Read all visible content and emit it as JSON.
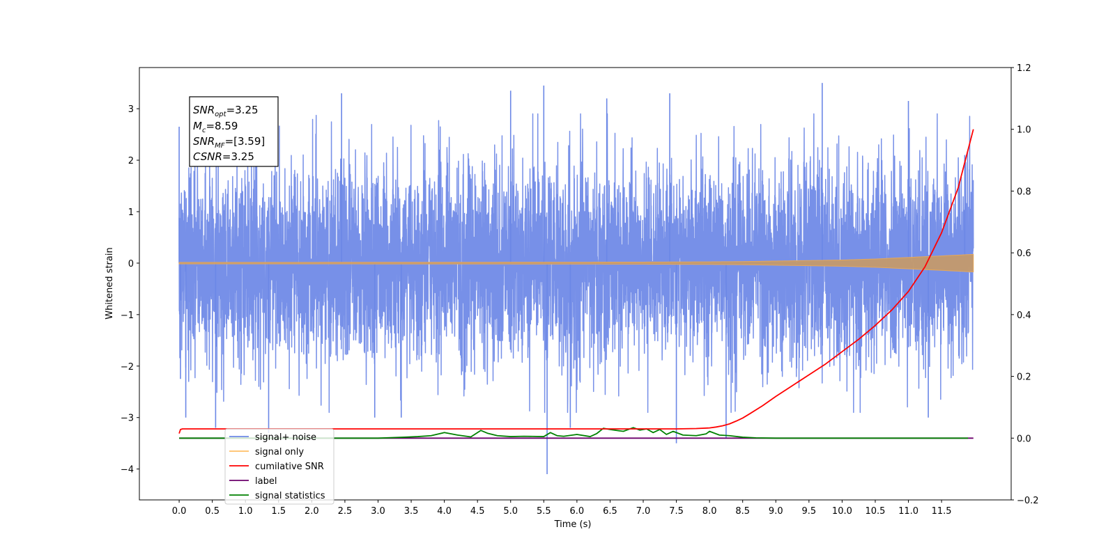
{
  "chart_data": {
    "type": "line",
    "title": "",
    "xlabel": "Time (s)",
    "ylabel": "Whitened strain",
    "y2label": "",
    "xlim": [
      -0.6,
      12.55
    ],
    "ylim": [
      -4.6,
      3.8
    ],
    "y2lim": [
      -0.2,
      1.2
    ],
    "grid": false,
    "legend_placement": "lower left",
    "x_ticks": [
      "0.0",
      "0.5",
      "1.0",
      "1.5",
      "2.0",
      "2.5",
      "3.0",
      "3.5",
      "4.0",
      "4.5",
      "5.0",
      "5.5",
      "6.0",
      "6.5",
      "7.0",
      "7.5",
      "8.0",
      "8.5",
      "9.0",
      "9.5",
      "10.0",
      "10.5",
      "11.0",
      "11.5"
    ],
    "y_ticks": [
      "−4",
      "−3",
      "−2",
      "−1",
      "0",
      "1",
      "2",
      "3"
    ],
    "y2_ticks": [
      "−0.2",
      "0.0",
      "0.2",
      "0.4",
      "0.6",
      "0.8",
      "1.0",
      "1.2"
    ],
    "annotation": {
      "snr_opt": "3.25",
      "mc": "8.59",
      "snr_mf": "[3.59]",
      "csnr": "3.25"
    },
    "series": [
      {
        "name": "signal+ noise",
        "color": "#6b87e6",
        "axis": "left",
        "style": "noisy band",
        "band_typical_envelope": [
          -1.5,
          1.5
        ],
        "band_rms": 0.95,
        "notable_extremes": [
          {
            "x": 0.0,
            "y": 2.65
          },
          {
            "x": 0.02,
            "y": -2.25
          },
          {
            "x": 0.1,
            "y": -3.0
          },
          {
            "x": 0.55,
            "y": -3.2
          },
          {
            "x": 1.35,
            "y": -3.3
          },
          {
            "x": 2.45,
            "y": 3.3
          },
          {
            "x": 2.95,
            "y": -3.0
          },
          {
            "x": 3.35,
            "y": -3.0
          },
          {
            "x": 5.0,
            "y": 3.35
          },
          {
            "x": 5.5,
            "y": 3.45
          },
          {
            "x": 5.55,
            "y": -4.1
          },
          {
            "x": 5.9,
            "y": -3.2
          },
          {
            "x": 6.45,
            "y": 3.2
          },
          {
            "x": 7.4,
            "y": 3.3
          },
          {
            "x": 7.5,
            "y": -3.5
          },
          {
            "x": 8.25,
            "y": -3.4
          },
          {
            "x": 9.7,
            "y": 3.5
          },
          {
            "x": 11.0,
            "y": 3.15
          },
          {
            "x": 11.3,
            "y": -3.0
          },
          {
            "x": 11.85,
            "y": 2.1
          }
        ]
      },
      {
        "name": "signal only",
        "color": "#f5a623",
        "axis": "left",
        "style": "chirp",
        "envelope_x": [
          0.0,
          2.0,
          4.0,
          6.0,
          7.0,
          8.0,
          8.5,
          9.0,
          9.5,
          10.0,
          10.5,
          11.0,
          11.5,
          11.98
        ],
        "envelope_amp": [
          0.015,
          0.015,
          0.016,
          0.018,
          0.02,
          0.025,
          0.03,
          0.04,
          0.05,
          0.06,
          0.08,
          0.11,
          0.14,
          0.17
        ]
      },
      {
        "name": "cumilative SNR",
        "color": "#ff0000",
        "axis": "right",
        "x": [
          0.0,
          0.02,
          0.05,
          1.0,
          2.0,
          3.0,
          4.0,
          5.0,
          6.0,
          7.0,
          7.5,
          7.8,
          8.0,
          8.1,
          8.2,
          8.3,
          8.4,
          8.5,
          8.6,
          8.8,
          9.0,
          9.25,
          9.5,
          9.75,
          10.0,
          10.25,
          10.5,
          10.75,
          11.0,
          11.25,
          11.5,
          11.75,
          11.98
        ],
        "y": [
          0.015,
          0.028,
          0.03,
          0.03,
          0.03,
          0.03,
          0.03,
          0.03,
          0.03,
          0.03,
          0.03,
          0.031,
          0.033,
          0.036,
          0.04,
          0.046,
          0.055,
          0.065,
          0.078,
          0.105,
          0.135,
          0.17,
          0.205,
          0.24,
          0.28,
          0.32,
          0.365,
          0.415,
          0.475,
          0.555,
          0.665,
          0.81,
          1.0
        ]
      },
      {
        "name": "label",
        "color": "#6b006b",
        "axis": "right",
        "x": [
          0.0,
          11.98
        ],
        "y": [
          0.0,
          0.0
        ]
      },
      {
        "name": "signal statistics",
        "color": "#008000",
        "axis": "right",
        "x": [
          0.0,
          3.0,
          3.4,
          3.6,
          3.8,
          4.0,
          4.2,
          4.4,
          4.55,
          4.65,
          4.8,
          5.0,
          5.2,
          5.5,
          5.6,
          5.7,
          5.8,
          6.0,
          6.2,
          6.3,
          6.4,
          6.5,
          6.7,
          6.85,
          6.95,
          7.05,
          7.15,
          7.25,
          7.35,
          7.45,
          7.6,
          7.8,
          7.95,
          8.0,
          8.15,
          8.3,
          8.5,
          8.7,
          9.0,
          10.0,
          11.0,
          11.9
        ],
        "y": [
          0.0,
          0.0,
          0.003,
          0.005,
          0.008,
          0.018,
          0.01,
          0.004,
          0.025,
          0.016,
          0.008,
          0.005,
          0.006,
          0.005,
          0.018,
          0.008,
          0.006,
          0.012,
          0.005,
          0.015,
          0.032,
          0.028,
          0.022,
          0.034,
          0.026,
          0.03,
          0.018,
          0.028,
          0.012,
          0.022,
          0.01,
          0.008,
          0.014,
          0.022,
          0.01,
          0.008,
          0.003,
          0.001,
          0.0,
          0.0,
          0.0,
          0.0
        ]
      }
    ],
    "legend": [
      {
        "label": "signal+ noise",
        "color": "#6b87e6"
      },
      {
        "label": "signal only",
        "color": "#ffbf66"
      },
      {
        "label": "cumilative SNR",
        "color": "#ff0000"
      },
      {
        "label": "label",
        "color": "#6b006b"
      },
      {
        "label": "signal statistics",
        "color": "#008000"
      }
    ]
  }
}
